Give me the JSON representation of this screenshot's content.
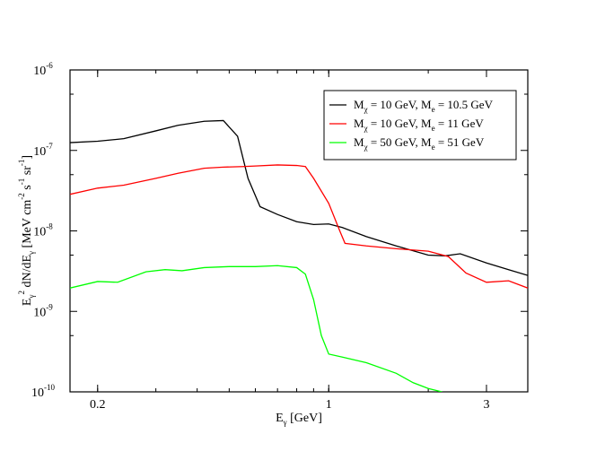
{
  "chart_data": {
    "type": "line",
    "x_scale": "log",
    "y_scale": "log",
    "xlim": [
      0.165,
      4.0
    ],
    "ylim": [
      1e-10,
      1e-06
    ],
    "xlabel": {
      "base": "E",
      "sub": "γ",
      "tail": " [GeV]"
    },
    "ylabel": {
      "parts": [
        {
          "t": "E",
          "s": "n"
        },
        {
          "t": "γ",
          "s": "sub"
        },
        {
          "t": "2",
          "s": "sup"
        },
        {
          "t": " dN/dE",
          "s": "n"
        },
        {
          "t": "γ",
          "s": "sub"
        },
        {
          "t": " [MeV cm",
          "s": "n"
        },
        {
          "t": "-2",
          "s": "sup"
        },
        {
          "t": " s",
          "s": "n"
        },
        {
          "t": "-1",
          "s": "sup"
        },
        {
          "t": " sr",
          "s": "n"
        },
        {
          "t": "-1",
          "s": "sup"
        },
        {
          "t": "]",
          "s": "n"
        }
      ]
    },
    "x_ticks": [
      {
        "value": 0.2,
        "label": "0.2"
      },
      {
        "value": 1,
        "label": "1"
      },
      {
        "value": 3,
        "label": "3"
      }
    ],
    "y_ticks": [
      {
        "value": 1e-06,
        "base": "10",
        "exp": "-6"
      },
      {
        "value": 1e-07,
        "base": "10",
        "exp": "-7"
      },
      {
        "value": 1e-08,
        "base": "10",
        "exp": "-8"
      },
      {
        "value": 1e-09,
        "base": "10",
        "exp": "-9"
      },
      {
        "value": 1e-10,
        "base": "10",
        "exp": "-10"
      }
    ],
    "legend_position": "top-right",
    "series": [
      {
        "name": "M_χ = 10 GeV, M_e = 10.5 GeV",
        "legend": {
          "m1": "χ",
          "v1": " = 10 GeV, M",
          "m2": "e",
          "v2": " = 10.5 GeV"
        },
        "color": "#000000",
        "x": [
          0.165,
          0.2,
          0.24,
          0.3,
          0.35,
          0.42,
          0.48,
          0.53,
          0.57,
          0.62,
          0.7,
          0.8,
          0.9,
          1.0,
          1.1,
          1.3,
          1.6,
          2.0,
          2.25,
          2.5,
          3.0,
          3.5,
          4.0
        ],
        "y": [
          1.25e-07,
          1.3e-07,
          1.4e-07,
          1.75e-07,
          2.05e-07,
          2.3e-07,
          2.35e-07,
          1.5e-07,
          4.5e-08,
          2e-08,
          1.6e-08,
          1.3e-08,
          1.2e-08,
          1.22e-08,
          1.1e-08,
          8.5e-09,
          6.5e-09,
          5e-09,
          4.9e-09,
          5.2e-09,
          4e-09,
          3.3e-09,
          2.8e-09
        ]
      },
      {
        "name": "M_χ = 10 GeV, M_e = 11 GeV",
        "legend": {
          "m1": "χ",
          "v1": " = 10 GeV, M",
          "m2": "e",
          "v2": " = 11 GeV"
        },
        "color": "#ff0000",
        "x": [
          0.165,
          0.2,
          0.24,
          0.3,
          0.35,
          0.42,
          0.48,
          0.55,
          0.6,
          0.7,
          0.8,
          0.85,
          0.9,
          1.0,
          1.08,
          1.12,
          1.3,
          1.6,
          2.0,
          2.3,
          2.6,
          3.0,
          3.5,
          4.0
        ],
        "y": [
          2.85e-08,
          3.4e-08,
          3.7e-08,
          4.5e-08,
          5.2e-08,
          6e-08,
          6.2e-08,
          6.3e-08,
          6.4e-08,
          6.6e-08,
          6.5e-08,
          6.3e-08,
          4.5e-08,
          2.2e-08,
          1e-08,
          7e-09,
          6.5e-09,
          6e-09,
          5.6e-09,
          4.8e-09,
          3e-09,
          2.3e-09,
          2.4e-09,
          1.95e-09
        ]
      },
      {
        "name": "M_χ = 50 GeV, M_e = 51 GeV",
        "legend": {
          "m1": "χ",
          "v1": " = 50 GeV, M",
          "m2": "e",
          "v2": " = 51 GeV"
        },
        "color": "#00ff00",
        "x": [
          0.165,
          0.2,
          0.23,
          0.28,
          0.32,
          0.36,
          0.42,
          0.5,
          0.6,
          0.7,
          0.8,
          0.85,
          0.9,
          0.95,
          1.0,
          1.1,
          1.3,
          1.6,
          1.8,
          2.0,
          2.2
        ],
        "y": [
          1.95e-09,
          2.35e-09,
          2.3e-09,
          3.1e-09,
          3.3e-09,
          3.2e-09,
          3.5e-09,
          3.6e-09,
          3.6e-09,
          3.7e-09,
          3.5e-09,
          2.9e-09,
          1.4e-09,
          5e-10,
          2.95e-10,
          2.7e-10,
          2.3e-10,
          1.7e-10,
          1.3e-10,
          1.1e-10,
          1e-10
        ]
      }
    ]
  }
}
